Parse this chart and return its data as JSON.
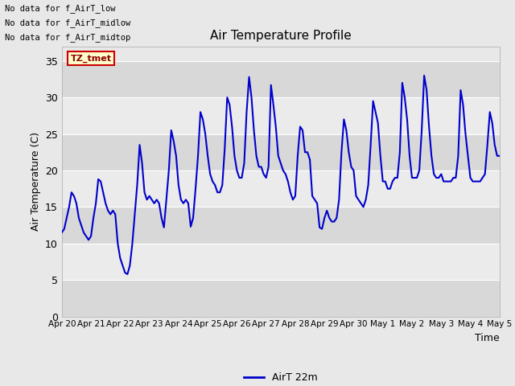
{
  "title": "Air Temperature Profile",
  "xlabel": "Time",
  "ylabel": "Air Temperature (C)",
  "ylim": [
    0,
    37
  ],
  "yticks": [
    0,
    5,
    10,
    15,
    20,
    25,
    30,
    35
  ],
  "bg_color": "#e8e8e8",
  "plot_bg_color": "#e8e8e8",
  "band_color": "#d8d8d8",
  "line_color": "#0000cc",
  "legend_label": "AirT 22m",
  "annotation_texts": [
    "No data for f_AirT_low",
    "No data for f_AirT_midlow",
    "No data for f_AirT_midtop"
  ],
  "tz_label": "TZ_tmet",
  "x_tick_labels": [
    "Apr 20",
    "Apr 21",
    "Apr 22",
    "Apr 23",
    "Apr 24",
    "Apr 25",
    "Apr 26",
    "Apr 27",
    "Apr 28",
    "Apr 29",
    "Apr 30",
    "May 1",
    "May 2",
    "May 3",
    "May 4",
    "May 5"
  ],
  "x_values": [
    0.0,
    0.083,
    0.167,
    0.25,
    0.333,
    0.417,
    0.5,
    0.583,
    0.667,
    0.75,
    0.833,
    0.917,
    1.0,
    1.083,
    1.167,
    1.25,
    1.333,
    1.417,
    1.5,
    1.583,
    1.667,
    1.75,
    1.833,
    1.917,
    2.0,
    2.083,
    2.167,
    2.25,
    2.333,
    2.417,
    2.5,
    2.583,
    2.667,
    2.75,
    2.833,
    2.917,
    3.0,
    3.083,
    3.167,
    3.25,
    3.333,
    3.417,
    3.5,
    3.583,
    3.667,
    3.75,
    3.833,
    3.917,
    4.0,
    4.083,
    4.167,
    4.25,
    4.333,
    4.417,
    4.5,
    4.583,
    4.667,
    4.75,
    4.833,
    4.917,
    5.0,
    5.083,
    5.167,
    5.25,
    5.333,
    5.417,
    5.5,
    5.583,
    5.667,
    5.75,
    5.833,
    5.917,
    6.0,
    6.083,
    6.167,
    6.25,
    6.333,
    6.417,
    6.5,
    6.583,
    6.667,
    6.75,
    6.833,
    6.917,
    7.0,
    7.083,
    7.167,
    7.25,
    7.333,
    7.417,
    7.5,
    7.583,
    7.667,
    7.75,
    7.833,
    7.917,
    8.0,
    8.083,
    8.167,
    8.25,
    8.333,
    8.417,
    8.5,
    8.583,
    8.667,
    8.75,
    8.833,
    8.917,
    9.0,
    9.083,
    9.167,
    9.25,
    9.333,
    9.417,
    9.5,
    9.583,
    9.667,
    9.75,
    9.833,
    9.917,
    10.0,
    10.083,
    10.167,
    10.25,
    10.333,
    10.417,
    10.5,
    10.583,
    10.667,
    10.75,
    10.833,
    10.917,
    11.0,
    11.083,
    11.167,
    11.25,
    11.333,
    11.417,
    11.5,
    11.583,
    11.667,
    11.75,
    11.833,
    11.917,
    12.0,
    12.083,
    12.167,
    12.25,
    12.333,
    12.417,
    12.5,
    12.583,
    12.667,
    12.75,
    12.833,
    12.917,
    13.0,
    13.083,
    13.167,
    13.25,
    13.333,
    13.417,
    13.5,
    13.583,
    13.667,
    13.75,
    13.833,
    13.917,
    14.0,
    14.083,
    14.167,
    14.25,
    14.333,
    14.417,
    14.5,
    14.583,
    14.667,
    14.75,
    14.833,
    14.917,
    15.0
  ],
  "y_values": [
    11.5,
    12.0,
    13.5,
    15.0,
    17.0,
    16.5,
    15.5,
    13.5,
    12.5,
    11.5,
    11.0,
    10.5,
    11.0,
    13.5,
    15.5,
    18.8,
    18.5,
    17.0,
    15.5,
    14.5,
    14.0,
    14.5,
    14.0,
    10.0,
    8.0,
    7.0,
    6.0,
    5.8,
    7.0,
    10.0,
    14.0,
    18.0,
    23.5,
    21.0,
    17.0,
    16.0,
    16.5,
    16.0,
    15.5,
    16.0,
    15.5,
    13.5,
    12.2,
    16.0,
    20.0,
    25.5,
    24.0,
    22.0,
    18.0,
    16.0,
    15.5,
    16.0,
    15.5,
    12.3,
    13.5,
    17.5,
    22.0,
    28.0,
    27.0,
    25.0,
    22.0,
    19.5,
    18.5,
    18.0,
    17.0,
    17.0,
    18.0,
    23.0,
    30.0,
    29.0,
    26.0,
    22.0,
    20.0,
    19.0,
    19.0,
    21.0,
    28.0,
    32.8,
    30.0,
    25.5,
    22.0,
    20.5,
    20.5,
    19.5,
    19.0,
    20.5,
    31.7,
    29.0,
    26.0,
    22.0,
    21.0,
    20.0,
    19.5,
    18.5,
    17.0,
    16.0,
    16.5,
    22.0,
    26.0,
    25.5,
    22.5,
    22.5,
    21.5,
    16.5,
    16.0,
    15.5,
    12.2,
    12.0,
    13.5,
    14.5,
    13.5,
    13.0,
    13.0,
    13.5,
    16.0,
    22.5,
    27.0,
    25.5,
    22.5,
    20.5,
    20.0,
    16.5,
    16.0,
    15.5,
    15.0,
    16.0,
    18.0,
    23.5,
    29.5,
    28.0,
    26.5,
    22.0,
    18.5,
    18.5,
    17.5,
    17.5,
    18.5,
    19.0,
    19.0,
    22.5,
    32.0,
    30.0,
    27.0,
    22.0,
    19.0,
    19.0,
    19.0,
    20.0,
    25.5,
    33.0,
    31.0,
    26.0,
    22.0,
    19.5,
    19.0,
    19.0,
    19.5,
    18.5,
    18.5,
    18.5,
    18.5,
    19.0,
    19.0,
    22.0,
    31.0,
    29.0,
    25.0,
    22.0,
    19.0,
    18.5,
    18.5,
    18.5,
    18.5,
    19.0,
    19.5,
    23.5,
    28.0,
    26.5,
    23.5,
    22.0,
    22.0
  ]
}
